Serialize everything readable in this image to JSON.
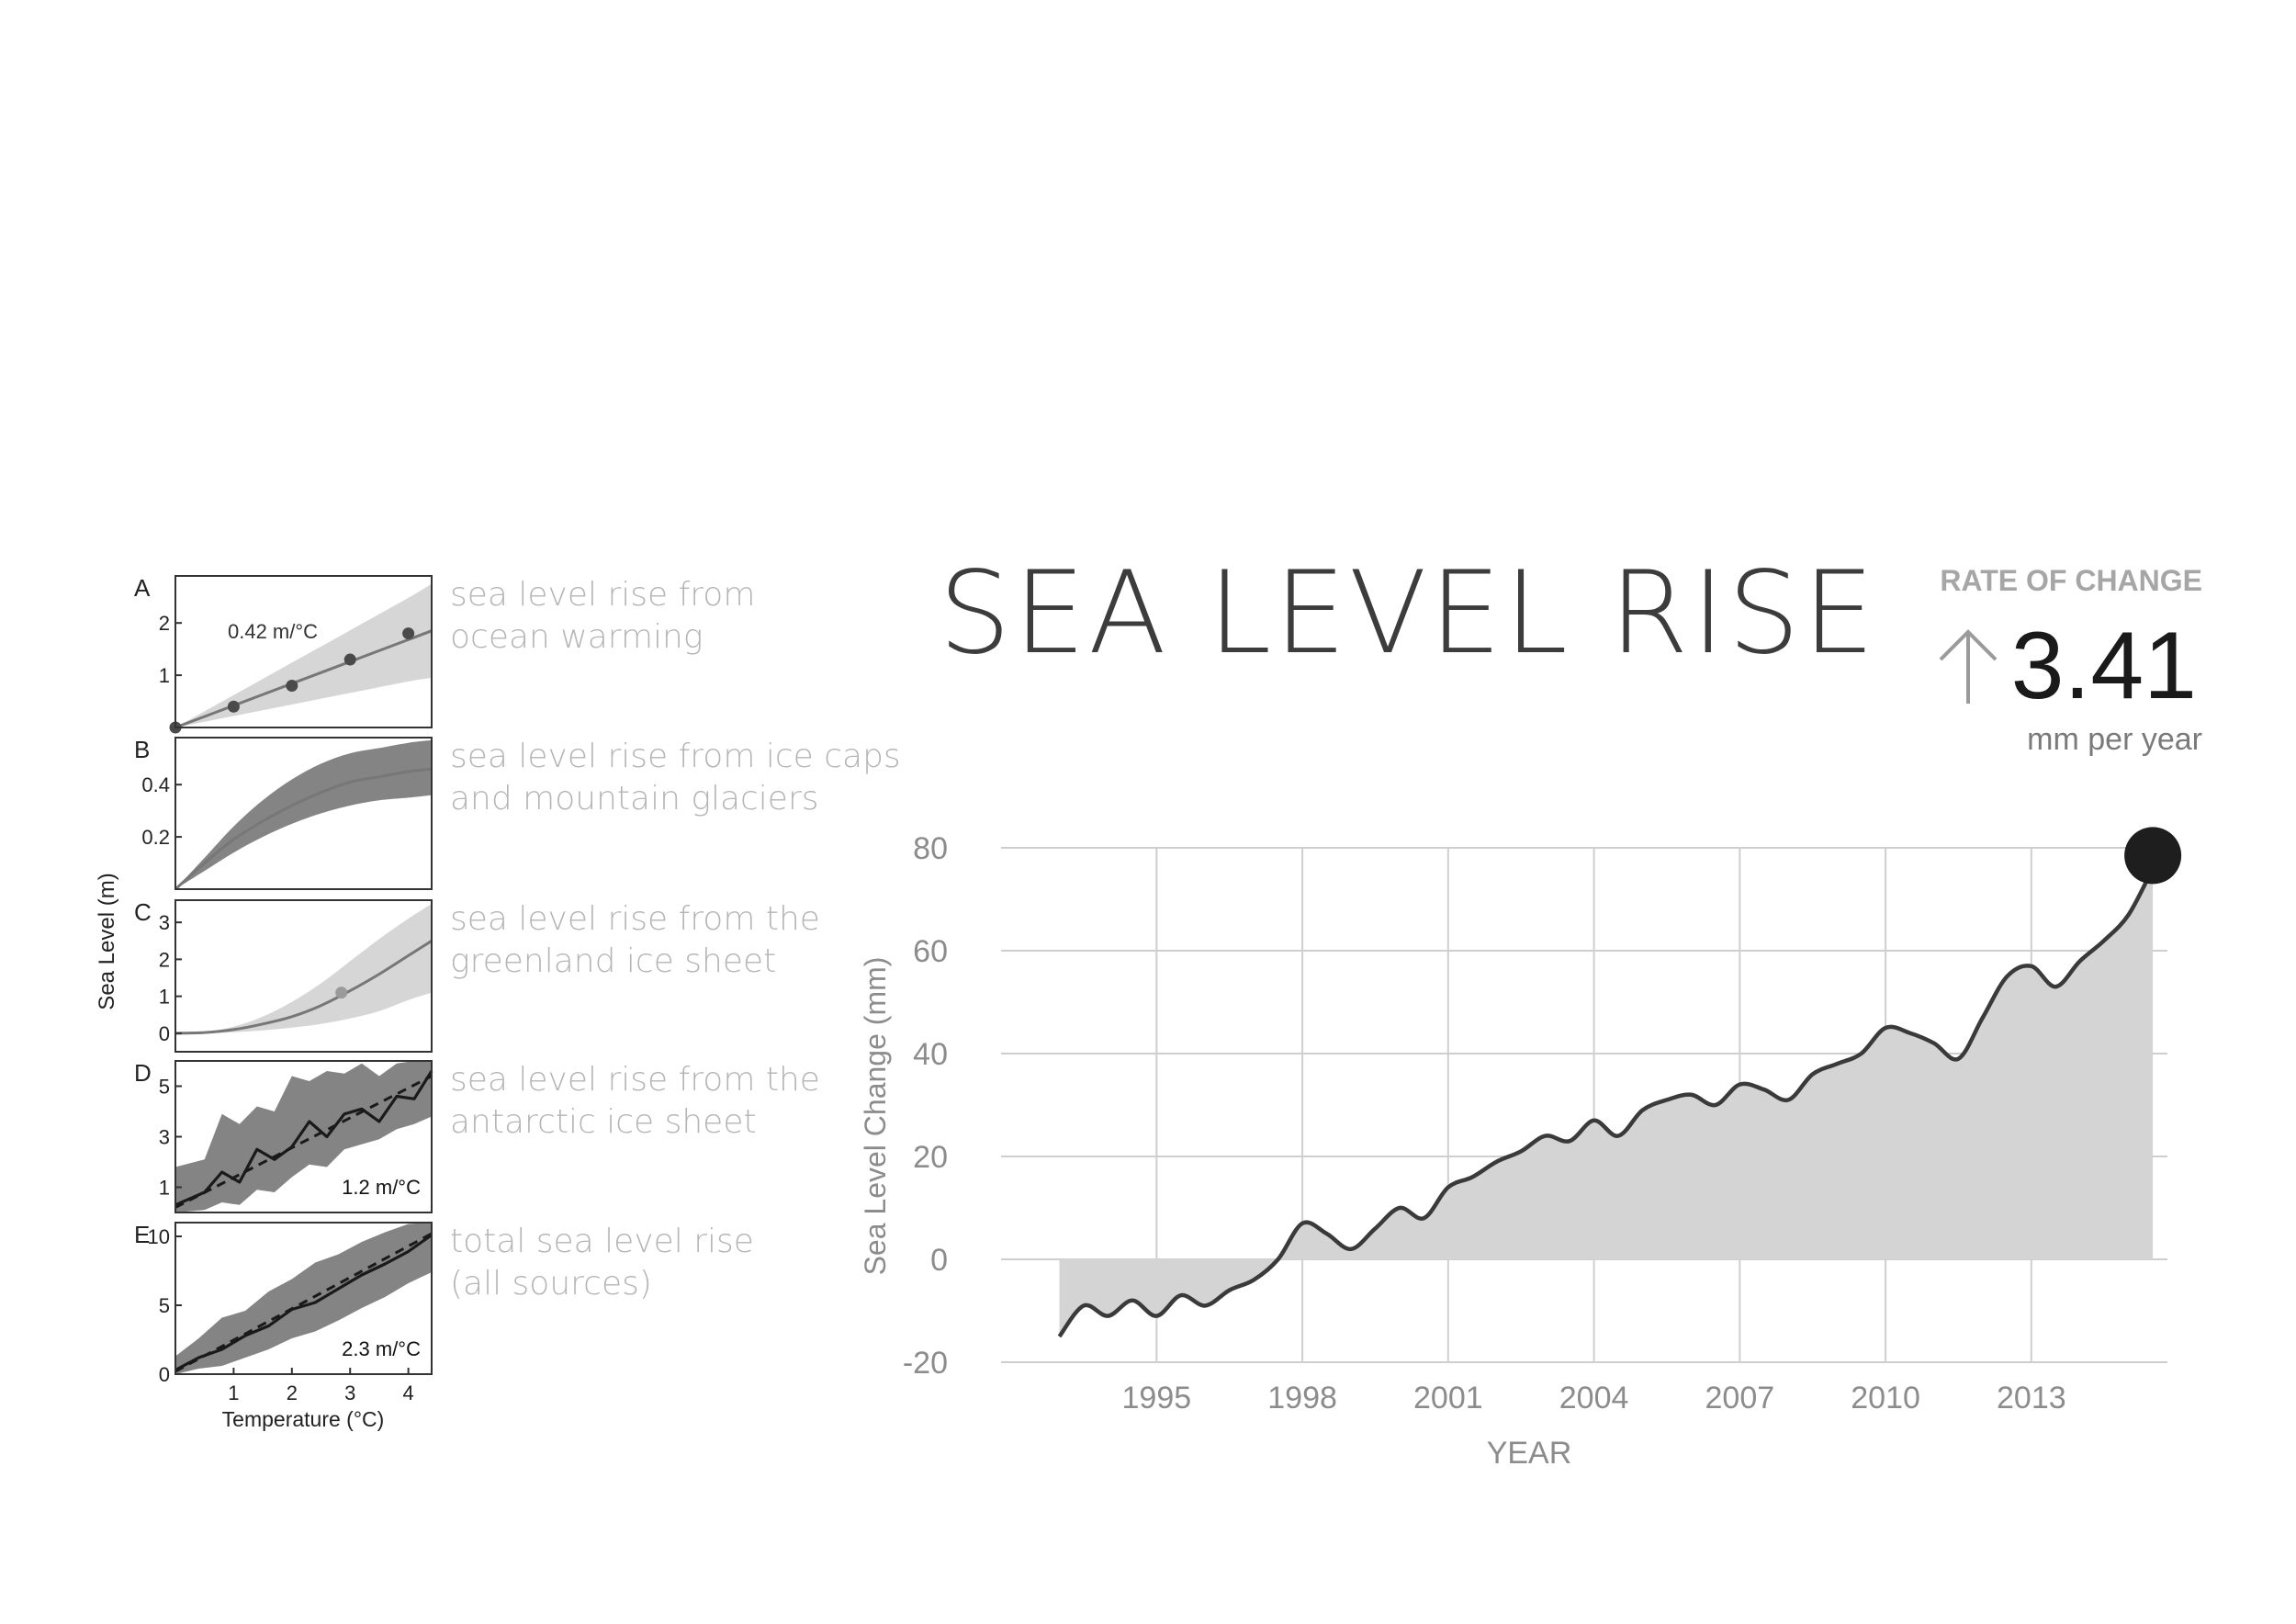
{
  "title": "SEA LEVEL RISE",
  "rate": {
    "label": "RATE OF CHANGE",
    "value": "3.41",
    "unit": "mm per year",
    "arrow_icon": "arrow-up-icon"
  },
  "colors": {
    "fill_light": "#d4d4d4",
    "fill_mid": "#b0b0b0",
    "fill_dark": "#7d7d7d",
    "line": "#3a3a3a",
    "grid": "#cfcfcf",
    "muted_text": "#8c8c8c",
    "caption_text": "#b5b5b5",
    "rate_label": "#a6a6a6",
    "rate_value": "#1a1a1a",
    "marker": "#1e1e1e"
  },
  "chart_data": [
    {
      "id": "main",
      "type": "area",
      "title": "SEA LEVEL RISE",
      "xlabel": "YEAR",
      "ylabel": "Sea Level Change (mm)",
      "xlim": [
        1991.8,
        2015.8
      ],
      "ylim": [
        -20,
        80
      ],
      "x_ticks": [
        1995,
        1998,
        2001,
        2004,
        2007,
        2010,
        2013
      ],
      "x_tick_labels": [
        "1995",
        "1998",
        "2001",
        "2004",
        "2007",
        "2010",
        "2013"
      ],
      "y_ticks": [
        80,
        60,
        40,
        20,
        0,
        -20
      ],
      "y_tick_labels": [
        "80",
        "60",
        "40",
        "20",
        "0",
        "-20"
      ],
      "grid": true,
      "series": [
        {
          "name": "Sea level change",
          "x": [
            1993.0,
            1993.5,
            1994.0,
            1994.5,
            1995.0,
            1995.5,
            1996.0,
            1996.5,
            1997.0,
            1997.5,
            1998.0,
            1998.5,
            1999.0,
            1999.5,
            2000.0,
            2000.5,
            2001.0,
            2001.5,
            2002.0,
            2002.5,
            2003.0,
            2003.5,
            2004.0,
            2004.5,
            2005.0,
            2005.5,
            2006.0,
            2006.5,
            2007.0,
            2007.5,
            2008.0,
            2008.5,
            2009.0,
            2009.5,
            2010.0,
            2010.5,
            2011.0,
            2011.5,
            2012.0,
            2012.5,
            2013.0,
            2013.5,
            2014.0,
            2014.5,
            2015.0,
            2015.5
          ],
          "values": [
            -15,
            -9,
            -11,
            -8,
            -11,
            -7,
            -9,
            -6,
            -4,
            0,
            7,
            5,
            2,
            6,
            10,
            8,
            14,
            16,
            19,
            21,
            24,
            23,
            27,
            24,
            29,
            31,
            32,
            30,
            34,
            33,
            31,
            36,
            38,
            40,
            45,
            44,
            42,
            39,
            47,
            55,
            57,
            53,
            58,
            62,
            67,
            76
          ]
        }
      ],
      "marker_at": {
        "x": 2015.5,
        "y": 76
      }
    },
    {
      "id": "A",
      "type": "line",
      "panel_label": "A",
      "caption": [
        "sea level rise from",
        "ocean warming"
      ],
      "annotation": "0.42 m/°C",
      "xlim": [
        0,
        4.4
      ],
      "ylim": [
        0,
        2.9
      ],
      "y_ticks": [
        1,
        2
      ],
      "y_tick_labels": [
        "1",
        "2"
      ],
      "band_color": "fill_light",
      "series": [
        {
          "name": "fit",
          "x": [
            0,
            1,
            2,
            3,
            4,
            4.4
          ],
          "values": [
            0,
            0.42,
            0.84,
            1.26,
            1.68,
            1.85
          ]
        },
        {
          "name": "band_upper",
          "x": [
            0,
            1,
            2,
            3,
            4,
            4.4
          ],
          "values": [
            0,
            0.62,
            1.24,
            1.86,
            2.48,
            2.75
          ]
        },
        {
          "name": "band_lower",
          "x": [
            0,
            1,
            2,
            3,
            4,
            4.4
          ],
          "values": [
            0,
            0.22,
            0.44,
            0.66,
            0.88,
            0.95
          ]
        },
        {
          "name": "points",
          "x": [
            0,
            1,
            2,
            3,
            4
          ],
          "values": [
            0,
            0.4,
            0.8,
            1.3,
            1.8
          ]
        }
      ]
    },
    {
      "id": "B",
      "type": "line",
      "panel_label": "B",
      "caption": [
        "sea level rise from ice caps",
        "and mountain glaciers"
      ],
      "xlim": [
        0,
        4.4
      ],
      "ylim": [
        0,
        0.58
      ],
      "y_ticks": [
        0.2,
        0.4
      ],
      "y_tick_labels": [
        "0.2",
        "0.4"
      ],
      "band_color": "fill_dark",
      "series": [
        {
          "name": "fit",
          "x": [
            0,
            0.5,
            1,
            1.5,
            2,
            2.5,
            3,
            3.5,
            4,
            4.4
          ],
          "values": [
            0,
            0.1,
            0.19,
            0.26,
            0.32,
            0.37,
            0.41,
            0.43,
            0.45,
            0.46
          ]
        },
        {
          "name": "band_upper",
          "x": [
            0,
            0.5,
            1,
            1.5,
            2,
            2.5,
            3,
            3.5,
            4,
            4.4
          ],
          "values": [
            0,
            0.12,
            0.24,
            0.34,
            0.42,
            0.48,
            0.52,
            0.54,
            0.56,
            0.57
          ]
        },
        {
          "name": "band_lower",
          "x": [
            0,
            0.5,
            1,
            1.5,
            2,
            2.5,
            3,
            3.5,
            4,
            4.4
          ],
          "values": [
            0,
            0.07,
            0.14,
            0.2,
            0.25,
            0.29,
            0.32,
            0.34,
            0.35,
            0.36
          ]
        }
      ]
    },
    {
      "id": "C",
      "type": "line",
      "panel_label": "C",
      "caption": [
        "sea level rise from the",
        "greenland ice sheet"
      ],
      "xlim": [
        0,
        4.4
      ],
      "ylim": [
        -0.5,
        3.6
      ],
      "y_ticks": [
        0,
        1,
        2,
        3
      ],
      "y_tick_labels": [
        "0",
        "1",
        "2",
        "3"
      ],
      "band_color": "fill_light",
      "series": [
        {
          "name": "fit",
          "x": [
            0,
            0.5,
            1,
            1.5,
            2,
            2.5,
            3,
            3.5,
            4,
            4.4
          ],
          "values": [
            0,
            0.02,
            0.1,
            0.25,
            0.45,
            0.75,
            1.15,
            1.6,
            2.1,
            2.5
          ]
        },
        {
          "name": "band_upper",
          "x": [
            0,
            0.5,
            1,
            1.5,
            2,
            2.5,
            3,
            3.5,
            4,
            4.4
          ],
          "values": [
            0,
            0.04,
            0.18,
            0.45,
            0.85,
            1.35,
            1.95,
            2.55,
            3.1,
            3.5
          ]
        },
        {
          "name": "band_lower",
          "x": [
            0,
            0.5,
            1,
            1.5,
            2,
            2.5,
            3,
            3.5,
            4,
            4.4
          ],
          "values": [
            0,
            0,
            0.03,
            0.08,
            0.15,
            0.25,
            0.4,
            0.6,
            0.9,
            1.1
          ]
        },
        {
          "name": "points",
          "x": [
            2.85
          ],
          "values": [
            1.1
          ]
        }
      ]
    },
    {
      "id": "D",
      "type": "line",
      "panel_label": "D",
      "caption": [
        "sea level rise from the",
        "antarctic ice sheet"
      ],
      "annotation": "1.2 m/°C",
      "xlim": [
        0,
        4.4
      ],
      "ylim": [
        0,
        6
      ],
      "y_ticks": [
        1,
        3,
        5
      ],
      "y_tick_labels": [
        "1",
        "3",
        "5"
      ],
      "band_color": "fill_dark",
      "series": [
        {
          "name": "fit",
          "x": [
            0,
            4.4
          ],
          "values": [
            0.2,
            5.4
          ]
        },
        {
          "name": "data",
          "x": [
            0,
            0.5,
            0.8,
            1.1,
            1.4,
            1.7,
            2.0,
            2.3,
            2.6,
            2.9,
            3.2,
            3.5,
            3.8,
            4.1,
            4.4
          ],
          "values": [
            0.3,
            0.8,
            1.6,
            1.2,
            2.5,
            2.1,
            2.6,
            3.6,
            3.0,
            3.9,
            4.1,
            3.6,
            4.6,
            4.5,
            5.6
          ]
        },
        {
          "name": "band_upper",
          "x": [
            0,
            0.5,
            0.8,
            1.1,
            1.4,
            1.7,
            2.0,
            2.3,
            2.6,
            2.9,
            3.2,
            3.5,
            3.8,
            4.1,
            4.4
          ],
          "values": [
            1.8,
            2.1,
            3.9,
            3.5,
            4.2,
            4.0,
            5.4,
            5.2,
            5.6,
            5.5,
            5.9,
            5.4,
            5.9,
            6.0,
            6.0
          ]
        },
        {
          "name": "band_lower",
          "x": [
            0,
            0.5,
            0.8,
            1.1,
            1.4,
            1.7,
            2.0,
            2.3,
            2.6,
            2.9,
            3.2,
            3.5,
            3.8,
            4.1,
            4.4
          ],
          "values": [
            0.0,
            0.1,
            0.4,
            0.3,
            0.9,
            0.8,
            1.4,
            1.9,
            1.8,
            2.5,
            2.7,
            2.9,
            3.3,
            3.5,
            3.8
          ]
        }
      ]
    },
    {
      "id": "E",
      "type": "line",
      "panel_label": "E",
      "caption": [
        "total sea level rise",
        "(all sources)"
      ],
      "annotation": "2.3 m/°C",
      "xlim": [
        0,
        4.4
      ],
      "ylim": [
        0,
        11
      ],
      "x_ticks": [
        1,
        2,
        3,
        4
      ],
      "x_tick_labels": [
        "1",
        "2",
        "3",
        "4"
      ],
      "xlabel": "Temperature (°C)",
      "y_ticks": [
        0,
        5,
        10
      ],
      "y_tick_labels": [
        "0",
        "5",
        "10"
      ],
      "band_color": "fill_dark",
      "series": [
        {
          "name": "fit",
          "x": [
            0,
            4.4
          ],
          "values": [
            0.2,
            10.2
          ]
        },
        {
          "name": "data",
          "x": [
            0,
            0.4,
            0.8,
            1.2,
            1.6,
            2.0,
            2.4,
            2.8,
            3.2,
            3.6,
            4.0,
            4.4
          ],
          "values": [
            0.3,
            1.2,
            1.8,
            2.8,
            3.5,
            4.7,
            5.2,
            6.2,
            7.2,
            8.0,
            8.9,
            10.1
          ]
        },
        {
          "name": "band_upper",
          "x": [
            0,
            0.4,
            0.8,
            1.2,
            1.6,
            2.0,
            2.4,
            2.8,
            3.2,
            3.6,
            4.0,
            4.4
          ],
          "values": [
            1.3,
            2.6,
            4.1,
            4.6,
            6.0,
            6.9,
            8.1,
            8.7,
            9.6,
            10.3,
            10.9,
            11.0
          ]
        },
        {
          "name": "band_lower",
          "x": [
            0,
            0.4,
            0.8,
            1.2,
            1.6,
            2.0,
            2.4,
            2.8,
            3.2,
            3.6,
            4.0,
            4.4
          ],
          "values": [
            0.0,
            0.4,
            0.6,
            1.2,
            1.8,
            2.6,
            3.1,
            3.9,
            4.8,
            5.6,
            6.6,
            7.4
          ]
        }
      ]
    }
  ],
  "small_axes": {
    "ylabel": "Sea Level (m)"
  }
}
